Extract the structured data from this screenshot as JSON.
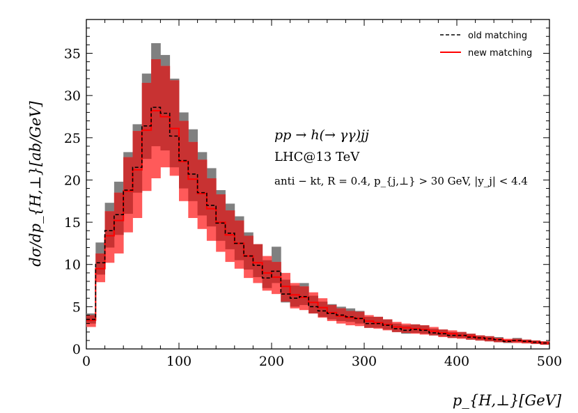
{
  "chart_data": {
    "type": "area",
    "xlabel": "p_{H,⊥}[GeV]",
    "ylabel": "dσ/dp_{H,⊥}[ab/GeV]",
    "xlim": [
      0,
      500
    ],
    "ylim": [
      0,
      39
    ],
    "x_ticks": [
      0,
      100,
      200,
      300,
      400,
      500
    ],
    "y_ticks": [
      0,
      5,
      10,
      15,
      20,
      25,
      30,
      35
    ],
    "legend_position": "top-right",
    "grid": false,
    "bin_edges": [
      0,
      10,
      20,
      30,
      40,
      50,
      60,
      70,
      80,
      90,
      100,
      110,
      120,
      130,
      140,
      150,
      160,
      170,
      180,
      190,
      200,
      210,
      220,
      230,
      240,
      250,
      260,
      270,
      280,
      290,
      300,
      310,
      320,
      330,
      340,
      350,
      360,
      370,
      380,
      390,
      400,
      410,
      420,
      430,
      440,
      450,
      460,
      470,
      480,
      490,
      500
    ],
    "series": [
      {
        "name": "old matching",
        "color": "#000000",
        "style": "dashed",
        "central": [
          3.5,
          10.2,
          14.0,
          15.9,
          18.8,
          21.5,
          26.4,
          28.6,
          27.9,
          25.2,
          22.3,
          20.7,
          18.5,
          17.0,
          14.9,
          13.7,
          12.5,
          11.0,
          9.9,
          8.4,
          9.2,
          6.5,
          6.0,
          6.2,
          5.0,
          4.5,
          4.2,
          4.0,
          3.8,
          3.6,
          3.0,
          3.0,
          2.8,
          2.4,
          2.2,
          2.3,
          2.2,
          1.9,
          1.8,
          1.6,
          1.6,
          1.4,
          1.3,
          1.2,
          1.1,
          0.9,
          1.0,
          0.9,
          0.8,
          0.7
        ],
        "band_low": [
          3.0,
          8.8,
          12.0,
          13.5,
          16.0,
          18.5,
          22.5,
          24.0,
          23.5,
          21.5,
          19.0,
          17.5,
          15.8,
          14.5,
          12.8,
          11.8,
          10.5,
          9.4,
          8.5,
          7.2,
          7.8,
          5.5,
          5.0,
          5.2,
          4.2,
          3.8,
          3.5,
          3.3,
          3.2,
          3.0,
          2.5,
          2.5,
          2.3,
          2.0,
          1.8,
          1.9,
          1.8,
          1.6,
          1.5,
          1.3,
          1.3,
          1.1,
          1.0,
          0.9,
          0.8,
          0.7,
          0.8,
          0.7,
          0.6,
          0.5
        ],
        "band_high": [
          4.2,
          12.6,
          17.3,
          19.8,
          23.3,
          26.6,
          32.6,
          36.2,
          34.8,
          32.0,
          28.0,
          26.0,
          23.3,
          21.4,
          18.8,
          17.2,
          15.7,
          13.8,
          12.4,
          10.5,
          12.1,
          8.2,
          7.5,
          7.8,
          6.3,
          5.6,
          5.3,
          5.0,
          4.8,
          4.5,
          3.8,
          3.8,
          3.5,
          3.0,
          2.8,
          2.9,
          2.8,
          2.4,
          2.3,
          2.0,
          2.0,
          1.8,
          1.6,
          1.5,
          1.4,
          1.1,
          1.3,
          1.1,
          1.0,
          0.9
        ]
      },
      {
        "name": "new matching",
        "color": "#ff0000",
        "style": "solid",
        "central": [
          3.4,
          9.5,
          13.4,
          15.2,
          18.7,
          21.2,
          25.9,
          28.2,
          27.5,
          26.1,
          22.2,
          20.1,
          18.4,
          16.6,
          15.0,
          13.5,
          12.5,
          11.0,
          10.2,
          9.0,
          8.5,
          7.4,
          6.4,
          6.1,
          5.5,
          4.9,
          4.3,
          3.9,
          3.7,
          3.6,
          3.3,
          3.1,
          2.9,
          2.6,
          2.5,
          2.4,
          2.3,
          2.1,
          1.9,
          1.8,
          1.6,
          1.5,
          1.3,
          1.2,
          1.1,
          1.0,
          1.0,
          0.9,
          0.8,
          0.7
        ],
        "band_low": [
          2.6,
          7.9,
          10.2,
          11.3,
          13.8,
          15.5,
          18.7,
          20.2,
          21.5,
          20.5,
          17.5,
          15.5,
          14.2,
          12.8,
          11.5,
          10.3,
          9.5,
          8.4,
          7.8,
          6.9,
          6.5,
          5.6,
          4.8,
          4.6,
          4.2,
          3.7,
          3.3,
          3.0,
          2.8,
          2.7,
          2.5,
          2.4,
          2.2,
          2.0,
          1.9,
          1.8,
          1.7,
          1.6,
          1.4,
          1.3,
          1.2,
          1.1,
          1.0,
          0.9,
          0.8,
          0.75,
          0.7,
          0.65,
          0.6,
          0.5
        ],
        "band_high": [
          4.0,
          11.3,
          16.3,
          18.5,
          22.7,
          25.8,
          31.5,
          34.3,
          33.5,
          31.8,
          27.0,
          24.5,
          22.4,
          20.2,
          18.3,
          16.4,
          15.2,
          13.4,
          12.4,
          11.0,
          10.3,
          9.0,
          7.8,
          7.4,
          6.7,
          6.0,
          5.2,
          4.8,
          4.5,
          4.4,
          4.0,
          3.8,
          3.5,
          3.2,
          3.0,
          2.9,
          2.8,
          2.6,
          2.3,
          2.2,
          2.0,
          1.8,
          1.6,
          1.5,
          1.3,
          1.2,
          1.2,
          1.1,
          1.0,
          0.9
        ]
      }
    ],
    "annotations": [
      "pp → h(→ γγ)jj",
      "LHC@13 TeV",
      "anti − kt, R = 0.4, p_{j,⊥} > 30 GeV, |y_j| < 4.4"
    ]
  },
  "colors": {
    "old_band": "#808080",
    "new_band": "#ff5a5a",
    "overlap_band": "#c83232"
  }
}
